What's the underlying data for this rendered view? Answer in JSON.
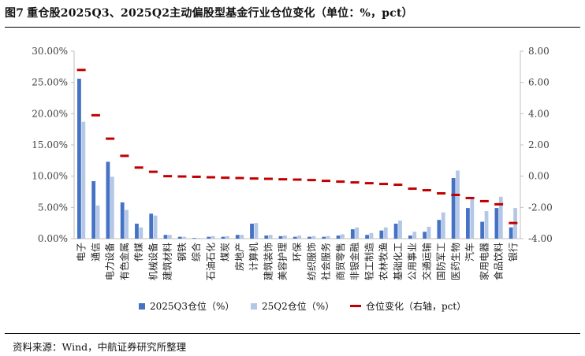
{
  "figure": {
    "label": "图7",
    "title": "重仓股2025Q3、2025Q2主动偏股型基金行业仓位变化（单位：%，pct）",
    "source": "资料来源：Wind，中航证券研究所整理"
  },
  "colors": {
    "q3": "#4472C4",
    "q2": "#B4C7E7",
    "change": "#C00000",
    "axis": "#BFBFBF",
    "text": "#404040"
  },
  "chart_data": {
    "type": "bar",
    "categories": [
      "电子",
      "通信",
      "电力设备",
      "有色金属",
      "传媒",
      "机械设备",
      "建筑材料",
      "钢铁",
      "综合",
      "石油石化",
      "煤炭",
      "房地产",
      "计算机",
      "建筑装饰",
      "美容护理",
      "环保",
      "纺织服饰",
      "社会服务",
      "商贸零售",
      "非银金融",
      "轻工制造",
      "农林牧渔",
      "基础化工",
      "公用事业",
      "交通运输",
      "国防军工",
      "医药生物",
      "汽车",
      "家用电器",
      "食品饮料",
      "银行"
    ],
    "series": [
      {
        "name": "2025Q3仓位（%）",
        "type": "bar",
        "axis": "left",
        "values": [
          25.6,
          9.2,
          12.3,
          5.8,
          2.4,
          4.0,
          0.6,
          0.3,
          0.1,
          0.3,
          0.3,
          0.6,
          2.4,
          0.5,
          0.4,
          0.3,
          0.3,
          0.3,
          0.5,
          1.5,
          0.6,
          1.3,
          2.4,
          0.5,
          1.1,
          3.0,
          9.7,
          4.9,
          2.7,
          4.9,
          1.8
        ]
      },
      {
        "name": "25Q2仓位（%）",
        "type": "bar",
        "axis": "left",
        "values": [
          18.7,
          5.3,
          9.9,
          4.6,
          1.8,
          3.7,
          0.6,
          0.3,
          0.1,
          0.4,
          0.4,
          0.6,
          2.5,
          0.6,
          0.5,
          0.5,
          0.4,
          0.4,
          0.7,
          1.8,
          0.9,
          1.8,
          2.9,
          1.1,
          1.9,
          4.2,
          10.9,
          6.3,
          4.4,
          6.7,
          4.9
        ]
      },
      {
        "name": "仓位变化（右轴，pct）",
        "type": "marker",
        "axis": "right",
        "values": [
          6.8,
          3.9,
          2.4,
          1.3,
          0.55,
          0.28,
          0.0,
          -0.02,
          -0.04,
          -0.07,
          -0.1,
          -0.12,
          -0.15,
          -0.17,
          -0.2,
          -0.22,
          -0.25,
          -0.3,
          -0.35,
          -0.4,
          -0.45,
          -0.5,
          -0.55,
          -0.8,
          -0.9,
          -1.1,
          -1.2,
          -1.4,
          -1.6,
          -1.8,
          -3.0
        ]
      }
    ],
    "y_left": {
      "min": 0,
      "max": 30,
      "step": 5,
      "tick_labels": [
        "0.00%",
        "5.00%",
        "10.00%",
        "15.00%",
        "20.00%",
        "25.00%",
        "30.00%"
      ]
    },
    "y_right": {
      "min": -4,
      "max": 8,
      "step": 2,
      "tick_labels": [
        "-4.00",
        "-2.00",
        "0.00",
        "2.00",
        "4.00",
        "6.00",
        "8.00"
      ]
    },
    "grid": false,
    "legend_position": "bottom"
  }
}
